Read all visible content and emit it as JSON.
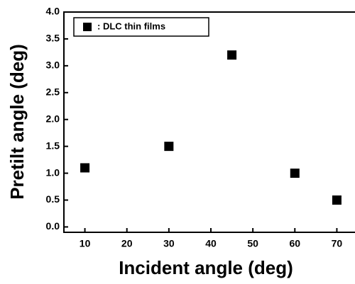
{
  "chart_data": {
    "type": "scatter",
    "x_label": "Incident angle (deg)",
    "y_label": "Pretilt angle (deg)",
    "series": [
      {
        "name": ": DLC thin films",
        "color": "#000000",
        "x": [
          10,
          30,
          45,
          60,
          70
        ],
        "values": [
          1.1,
          1.5,
          3.2,
          1.0,
          0.5
        ]
      }
    ],
    "xlim": [
      5,
      75
    ],
    "xticks": [
      10,
      20,
      30,
      40,
      50,
      60,
      70
    ],
    "ylim": [
      -0.1,
      4.0
    ],
    "yticks": [
      {
        "value": 0,
        "label": "0.0"
      },
      0.5,
      {
        "value": 1,
        "label": "1.0"
      },
      1.5,
      {
        "value": 2,
        "label": "2.0"
      },
      2.5,
      {
        "value": 3,
        "label": "3.0"
      },
      3.5,
      {
        "value": 4,
        "label": "4.0"
      }
    ],
    "legend": "upper left",
    "grid": false
  }
}
